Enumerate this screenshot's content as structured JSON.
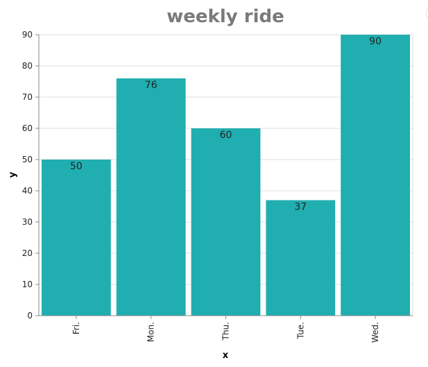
{
  "chart_data": {
    "type": "bar",
    "title": "weekly ride",
    "xlabel": "x",
    "ylabel": "y",
    "categories": [
      "Fri.",
      "Mon.",
      "Thu.",
      "Tue.",
      "Wed."
    ],
    "values": [
      50,
      76,
      60,
      37,
      90
    ],
    "ylim": [
      0,
      90
    ],
    "yticks": [
      "0",
      "10",
      "20",
      "30",
      "40",
      "50",
      "60",
      "70",
      "80",
      "90"
    ],
    "grid": true,
    "legend": "none",
    "bar_color": "#20aeb0",
    "data_labels": true
  }
}
